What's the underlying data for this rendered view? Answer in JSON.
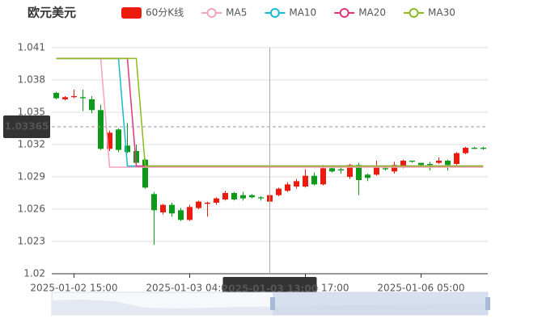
{
  "chart_data": {
    "type": "candlestick",
    "title": "欧元美元",
    "candle_name": "60分K线",
    "up_color": "#eb1b0f",
    "down_color": "#0c9a1a",
    "categories": [
      null,
      null,
      "2025-01-02 15:00",
      null,
      null,
      null,
      null,
      null,
      null,
      null,
      null,
      null,
      null,
      null,
      null,
      "2025-01-03 04:00",
      null,
      null,
      null,
      null,
      null,
      null,
      null,
      null,
      "2025-01-03 13:00",
      null,
      null,
      null,
      "2025-01-03 17:00",
      null,
      null,
      null,
      null,
      null,
      null,
      null,
      null,
      null,
      null,
      null,
      null,
      "2025-01-06 05:00",
      null,
      null,
      null,
      null,
      null,
      null,
      null
    ],
    "open": [
      1.0368,
      1.0362,
      1.0364,
      1.0364,
      1.0362,
      1.0352,
      1.0316,
      1.0334,
      1.0319,
      1.0314,
      1.0306,
      1.0274,
      1.0257,
      1.0264,
      1.0259,
      1.025,
      1.0261,
      1.0265,
      1.0266,
      1.0269,
      1.0275,
      1.0273,
      1.0273,
      1.0271,
      1.0267,
      1.0273,
      1.0277,
      1.0281,
      1.0281,
      1.0291,
      1.0283,
      1.0298,
      1.0297,
      1.029,
      1.0301,
      1.0292,
      1.0292,
      1.0298,
      1.0295,
      1.0299,
      1.0305,
      1.0303,
      1.0302,
      1.0303,
      1.0305,
      1.0302,
      1.0312,
      1.0317,
      1.0317
    ],
    "close": [
      1.0363,
      1.0364,
      1.0365,
      1.0363,
      1.0352,
      1.0316,
      1.0331,
      1.0315,
      1.0313,
      1.0303,
      1.028,
      1.0259,
      1.0264,
      1.0256,
      1.025,
      1.0262,
      1.0267,
      1.0266,
      1.027,
      1.0275,
      1.0269,
      1.027,
      1.0271,
      1.027,
      1.0273,
      1.0279,
      1.0283,
      1.0286,
      1.0291,
      1.0283,
      1.0298,
      1.0295,
      1.0296,
      1.0301,
      1.0287,
      1.0289,
      1.0299,
      1.0297,
      1.0301,
      1.0305,
      1.0304,
      1.0301,
      1.0301,
      1.0305,
      1.0301,
      1.0312,
      1.0317,
      1.0316,
      1.0316
    ],
    "low": [
      1.0362,
      1.0361,
      1.0363,
      1.0351,
      1.0349,
      1.0315,
      1.0314,
      1.0313,
      1.0312,
      1.0301,
      1.0279,
      1.0227,
      1.0255,
      1.0253,
      1.0249,
      1.0249,
      1.026,
      1.0253,
      1.0264,
      1.0268,
      1.0268,
      1.0268,
      1.027,
      1.0268,
      1.0266,
      1.0272,
      1.0276,
      1.0279,
      1.028,
      1.0282,
      1.0282,
      1.0294,
      1.0293,
      1.0288,
      1.0273,
      1.0286,
      1.0291,
      1.0296,
      1.0293,
      1.0298,
      1.0303,
      1.03,
      1.0296,
      1.0302,
      1.0296,
      1.0301,
      1.0311,
      1.0316,
      1.0315
    ],
    "high": [
      1.0369,
      1.0365,
      1.0371,
      1.0371,
      1.0365,
      1.0357,
      1.0333,
      1.0335,
      1.034,
      1.032,
      1.0307,
      1.0276,
      1.0265,
      1.0266,
      1.0261,
      1.0264,
      1.0268,
      1.0267,
      1.0271,
      1.0277,
      1.0276,
      1.0276,
      1.0274,
      1.0272,
      1.0275,
      1.028,
      1.0285,
      1.0288,
      1.0297,
      1.0294,
      1.0301,
      1.03,
      1.03,
      1.0302,
      1.0303,
      1.0293,
      1.0305,
      1.0299,
      1.0304,
      1.0306,
      1.0305,
      1.0303,
      1.0304,
      1.0308,
      1.0306,
      1.0313,
      1.0318,
      1.0318,
      1.0318
    ],
    "series": [
      {
        "name": "MA5",
        "color": "#f7a1bd",
        "values": [
          1.04,
          1.04,
          1.04,
          1.04,
          1.04,
          1.04,
          1.0299,
          1.0299,
          1.0299,
          1.0299,
          1.0299,
          1.0299,
          1.0299,
          1.0299,
          1.0299,
          1.0299,
          1.0299,
          1.0299,
          1.0299,
          1.0299,
          1.0299,
          1.0299,
          1.0299,
          1.0299,
          1.0299,
          1.0299,
          1.0299,
          1.0299,
          1.0299,
          1.0299,
          1.0299,
          1.0299,
          1.0299,
          1.0299,
          1.0299,
          1.0299,
          1.0299,
          1.0299,
          1.0299,
          1.0299,
          1.0299,
          1.0299,
          1.0299,
          1.0299,
          1.0299,
          1.0299,
          1.0299,
          1.0299,
          1.0299
        ]
      },
      {
        "name": "MA10",
        "color": "#1bb8d6",
        "values": [
          1.04,
          1.04,
          1.04,
          1.04,
          1.04,
          1.04,
          1.04,
          1.04,
          1.03,
          1.03,
          1.03,
          1.03,
          1.03,
          1.03,
          1.03,
          1.03,
          1.03,
          1.03,
          1.03,
          1.03,
          1.03,
          1.03,
          1.03,
          1.03,
          1.03,
          1.03,
          1.03,
          1.03,
          1.03,
          1.03,
          1.03,
          1.03,
          1.03,
          1.03,
          1.03,
          1.03,
          1.03,
          1.03,
          1.03,
          1.03,
          1.03,
          1.03,
          1.03,
          1.03,
          1.03,
          1.03,
          1.03,
          1.03,
          1.03
        ]
      },
      {
        "name": "MA20",
        "color": "#e0357a",
        "values": [
          1.04,
          1.04,
          1.04,
          1.04,
          1.04,
          1.04,
          1.04,
          1.04,
          1.04,
          1.03,
          1.03,
          1.03,
          1.03,
          1.03,
          1.03,
          1.03,
          1.03,
          1.03,
          1.03,
          1.03,
          1.03,
          1.03,
          1.03,
          1.03,
          1.03,
          1.03,
          1.03,
          1.03,
          1.03,
          1.03,
          1.03,
          1.03,
          1.03,
          1.03,
          1.03,
          1.03,
          1.03,
          1.03,
          1.03,
          1.03,
          1.03,
          1.03,
          1.03,
          1.03,
          1.03,
          1.03,
          1.03,
          1.03,
          1.03
        ]
      },
      {
        "name": "MA30",
        "color": "#8dbb1e",
        "values": [
          1.04,
          1.04,
          1.04,
          1.04,
          1.04,
          1.04,
          1.04,
          1.04,
          1.04,
          1.04,
          1.03,
          1.03,
          1.03,
          1.03,
          1.03,
          1.03,
          1.03,
          1.03,
          1.03,
          1.03,
          1.03,
          1.03,
          1.03,
          1.03,
          1.03,
          1.03,
          1.03,
          1.03,
          1.03,
          1.03,
          1.03,
          1.03,
          1.03,
          1.03,
          1.03,
          1.03,
          1.03,
          1.03,
          1.03,
          1.03,
          1.03,
          1.03,
          1.03,
          1.03,
          1.03,
          1.03,
          1.03,
          1.03,
          1.03
        ]
      }
    ],
    "last_price": 1.03365,
    "ylim": [
      1.02,
      1.041
    ],
    "yticks": [
      1.02,
      1.023,
      1.026,
      1.029,
      1.032,
      1.035,
      1.038,
      1.041
    ],
    "grid": true
  }
}
